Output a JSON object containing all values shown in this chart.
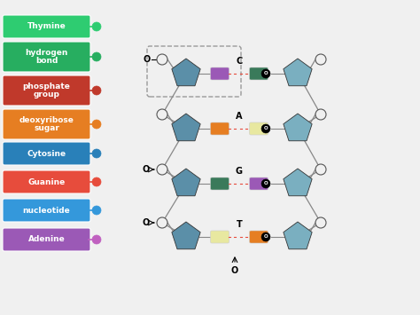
{
  "labels": [
    {
      "text": "Thymine",
      "color": "#2ecc71",
      "dot_color": "#2ecc71",
      "lines": 1
    },
    {
      "text": "hydrogen\nbond",
      "color": "#27ae60",
      "dot_color": "#27ae60",
      "lines": 2
    },
    {
      "text": "phosphate\ngroup",
      "color": "#c0392b",
      "dot_color": "#c0392b",
      "lines": 2
    },
    {
      "text": "deoxyribose\nsugar",
      "color": "#e67e22",
      "dot_color": "#e67e22",
      "lines": 2
    },
    {
      "text": "Cytosine",
      "color": "#2980b9",
      "dot_color": "#2980b9",
      "lines": 1
    },
    {
      "text": "Guanine",
      "color": "#e74c3c",
      "dot_color": "#e74c3c",
      "lines": 1
    },
    {
      "text": "nucleotide",
      "color": "#3498db",
      "dot_color": "#3498db",
      "lines": 1
    },
    {
      "text": "Adenine",
      "color": "#9b59b6",
      "dot_color": "#c060c0",
      "lines": 1
    }
  ],
  "bg_color": "#f0f0f0",
  "sugar_color_left": "#5b8fa8",
  "sugar_color_right": "#7aafc0",
  "base_pairs": [
    {
      "label": "C",
      "left_color": "#9b59b6",
      "right_color": "#3a7a5a"
    },
    {
      "label": "A",
      "left_color": "#e67e22",
      "right_color": "#e8e8a0"
    },
    {
      "label": "G",
      "left_color": "#3a7a5a",
      "right_color": "#9b59b6"
    },
    {
      "label": "T",
      "left_color": "#e8e8a0",
      "right_color": "#e67e22"
    }
  ],
  "bond_color": "#e74c3c",
  "backbone_color": "#888888",
  "circle_face": "#f0f0f0",
  "circle_edge": "#555555"
}
